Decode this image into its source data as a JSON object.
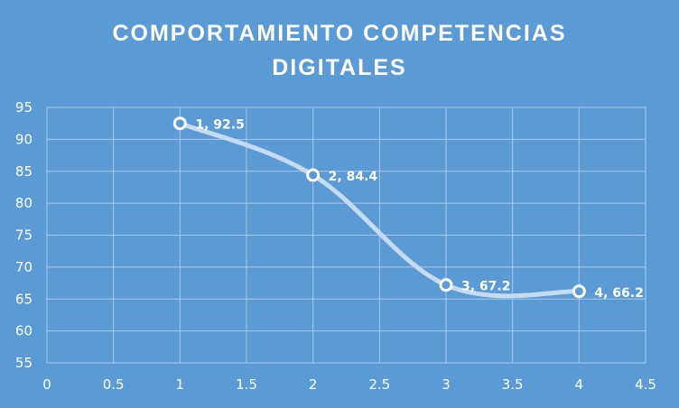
{
  "chart_data": {
    "type": "scatter",
    "title_lines": [
      "COMPORTAMIENTO  COMPETENCIAS",
      "DIGITALES"
    ],
    "xlabel": "",
    "ylabel": "",
    "x": [
      1,
      2,
      3,
      4
    ],
    "y": [
      92.5,
      84.4,
      67.2,
      66.2
    ],
    "data_labels": [
      "1, 92.5",
      "2, 84.4",
      "3, 67.2",
      "4, 66.2"
    ],
    "xlim": [
      0,
      4.5
    ],
    "ylim": [
      55,
      95
    ],
    "x_ticks": [
      0,
      0.5,
      1,
      1.5,
      2,
      2.5,
      3,
      3.5,
      4,
      4.5
    ],
    "x_tick_labels": [
      "0",
      "0.5",
      "1",
      "1.5",
      "2",
      "2.5",
      "3",
      "3.5",
      "4",
      "4.5"
    ],
    "y_ticks": [
      55,
      60,
      65,
      70,
      75,
      80,
      85,
      90,
      95
    ],
    "y_tick_labels": [
      "55",
      "60",
      "65",
      "70",
      "75",
      "80",
      "85",
      "90",
      "95"
    ],
    "grid": true,
    "smooth_lines": true,
    "legend": "none",
    "colors": {
      "background": "#5b9bd5",
      "line": "#c6dbf0",
      "gridline": "#a9c8e8",
      "marker_fill": "#5b9bd5",
      "marker_stroke": "#ffffff",
      "text": "#ffffff"
    }
  }
}
